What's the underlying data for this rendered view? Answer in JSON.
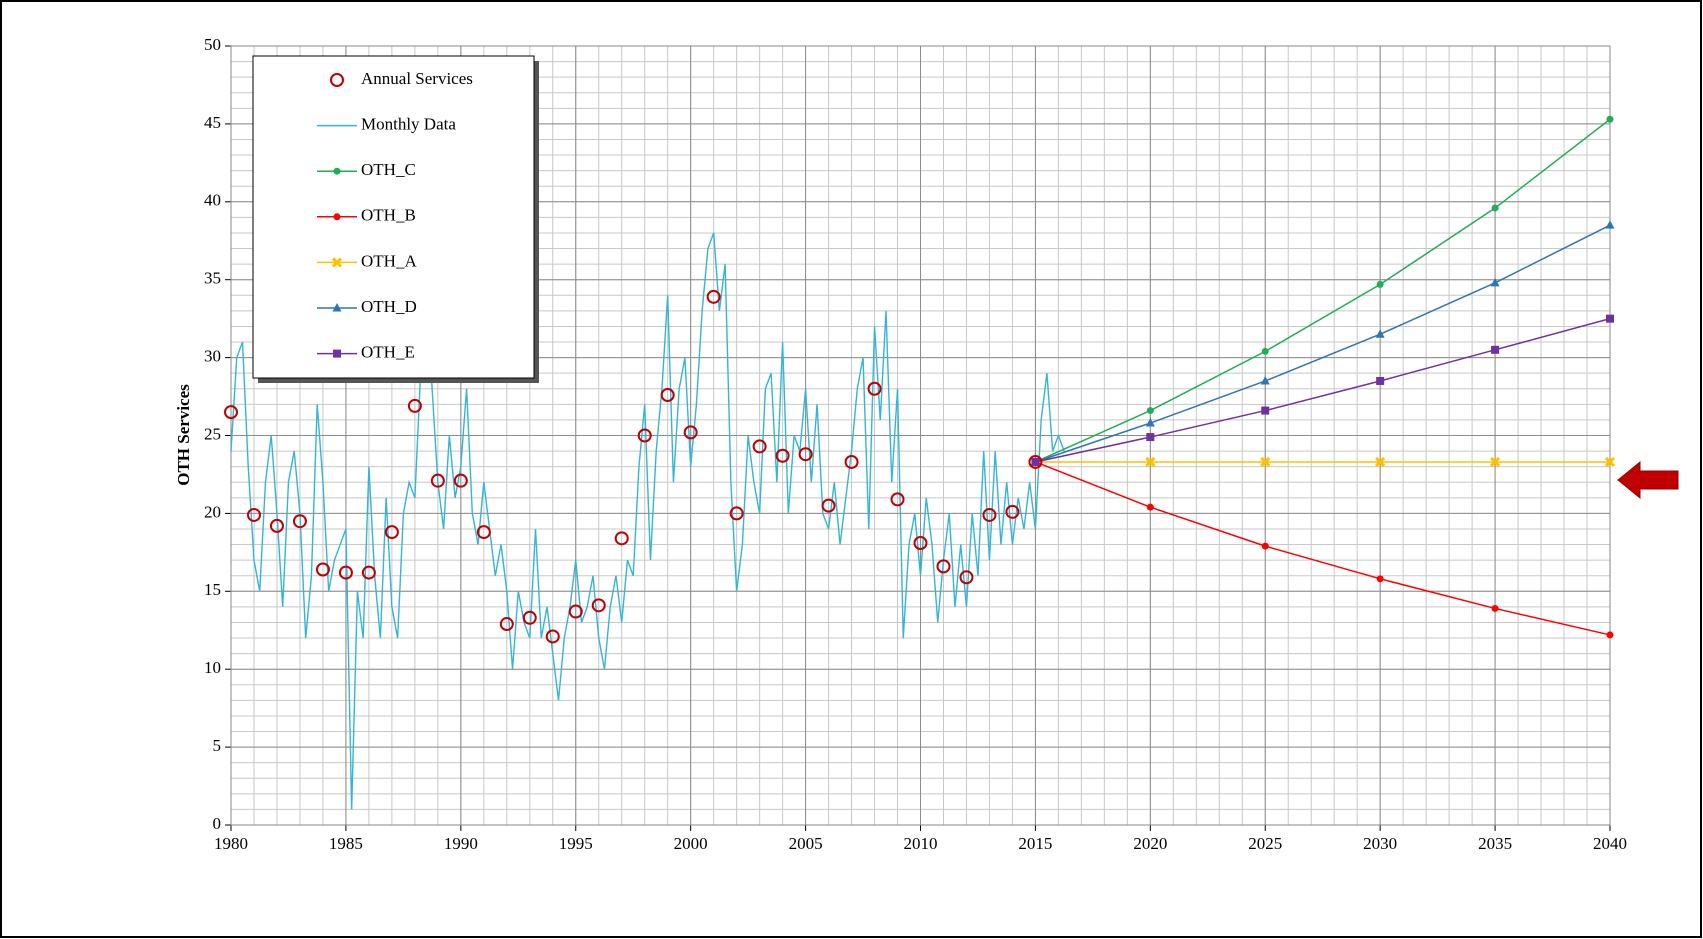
{
  "chart_data": {
    "type": "line",
    "y_axis_label": "OTH Services",
    "xlim": [
      1980,
      2040
    ],
    "xticks": [
      1980,
      1985,
      1990,
      1995,
      2000,
      2005,
      2010,
      2015,
      2020,
      2025,
      2030,
      2035,
      2040
    ],
    "ylim": [
      0,
      50
    ],
    "yticks": [
      0,
      5,
      10,
      15,
      20,
      25,
      30,
      35,
      40,
      45,
      50
    ],
    "grid": true,
    "minor_grid": true,
    "legend": "upper left",
    "series": [
      {
        "name": "Annual Services",
        "color": "#c00000",
        "marker": "open-circle",
        "line": false,
        "x": [
          1980,
          1981,
          1982,
          1983,
          1984,
          1985,
          1986,
          1987,
          1988,
          1989,
          1990,
          1991,
          1992,
          1993,
          1994,
          1995,
          1996,
          1997,
          1998,
          1999,
          2000,
          2001,
          2002,
          2003,
          2004,
          2005,
          2006,
          2007,
          2008,
          2009,
          2010,
          2011,
          2012,
          2013,
          2014,
          2015
        ],
        "values": [
          26.5,
          19.9,
          19.2,
          19.5,
          16.4,
          16.2,
          16.2,
          18.8,
          26.9,
          22.1,
          22.1,
          18.8,
          12.9,
          13.3,
          12.1,
          13.7,
          14.1,
          18.4,
          25.0,
          27.6,
          25.2,
          33.9,
          20.0,
          24.3,
          23.7,
          23.8,
          20.5,
          23.3,
          28.0,
          20.9,
          18.1,
          16.6,
          15.9,
          19.9,
          20.1,
          23.3
        ]
      },
      {
        "name": "Monthly Data",
        "color": "#33b5d8",
        "marker": "none",
        "line": true,
        "x": [
          1980,
          1980.25,
          1980.5,
          1980.75,
          1981,
          1981.25,
          1981.5,
          1981.75,
          1982,
          1982.25,
          1982.5,
          1982.75,
          1983,
          1983.25,
          1983.5,
          1983.75,
          1984,
          1984.25,
          1984.5,
          1984.75,
          1985,
          1985.25,
          1985.5,
          1985.75,
          1986,
          1986.25,
          1986.5,
          1986.75,
          1987,
          1987.25,
          1987.5,
          1987.75,
          1988,
          1988.25,
          1988.5,
          1988.75,
          1989,
          1989.25,
          1989.5,
          1989.75,
          1990,
          1990.25,
          1990.5,
          1990.75,
          1991,
          1991.25,
          1991.5,
          1991.75,
          1992,
          1992.25,
          1992.5,
          1992.75,
          1993,
          1993.25,
          1993.5,
          1993.75,
          1994,
          1994.25,
          1994.5,
          1994.75,
          1995,
          1995.25,
          1995.5,
          1995.75,
          1996,
          1996.25,
          1996.5,
          1996.75,
          1997,
          1997.25,
          1997.5,
          1997.75,
          1998,
          1998.25,
          1998.5,
          1998.75,
          1999,
          1999.25,
          1999.5,
          1999.75,
          2000,
          2000.25,
          2000.5,
          2000.75,
          2001,
          2001.25,
          2001.5,
          2001.75,
          2002,
          2002.25,
          2002.5,
          2002.75,
          2003,
          2003.25,
          2003.5,
          2003.75,
          2004,
          2004.25,
          2004.5,
          2004.75,
          2005,
          2005.25,
          2005.5,
          2005.75,
          2006,
          2006.25,
          2006.5,
          2006.75,
          2007,
          2007.25,
          2007.5,
          2007.75,
          2008,
          2008.25,
          2008.5,
          2008.75,
          2009,
          2009.25,
          2009.5,
          2009.75,
          2010,
          2010.25,
          2010.5,
          2010.75,
          2011,
          2011.25,
          2011.5,
          2011.75,
          2012,
          2012.25,
          2012.5,
          2012.75,
          2013,
          2013.25,
          2013.5,
          2013.75,
          2014,
          2014.25,
          2014.5,
          2014.75,
          2015,
          2015.25,
          2015.5,
          2015.75,
          2016,
          2016.25
        ],
        "values": [
          24,
          30,
          31,
          23,
          17,
          15,
          22,
          25,
          20,
          14,
          22,
          24,
          20,
          12,
          16,
          27,
          22,
          15,
          17,
          18,
          19,
          1,
          15,
          12,
          23,
          16,
          12,
          21,
          14,
          12,
          20,
          22,
          21,
          29,
          35,
          28,
          22,
          19,
          25,
          21,
          23,
          28,
          20,
          18,
          22,
          19,
          16,
          18,
          15,
          10,
          15,
          13,
          12,
          19,
          12,
          14,
          11,
          8,
          12,
          14,
          17,
          13,
          14,
          16,
          12,
          10,
          14,
          16,
          13,
          17,
          16,
          23,
          27,
          17,
          24,
          28,
          34,
          22,
          28,
          30,
          23,
          27,
          33,
          37,
          38,
          33,
          36,
          22,
          15,
          18,
          25,
          22,
          20,
          28,
          29,
          22,
          31,
          20,
          25,
          24,
          28,
          22,
          27,
          20,
          19,
          22,
          18,
          21,
          24,
          28,
          30,
          19,
          32,
          26,
          33,
          22,
          28,
          12,
          18,
          20,
          16,
          21,
          18,
          13,
          17,
          20,
          14,
          18,
          14,
          20,
          16,
          24,
          17,
          24,
          18,
          22,
          18,
          21,
          19,
          22,
          19,
          26,
          29,
          24,
          25,
          24
        ]
      },
      {
        "name": "OTH_C",
        "color": "#1fae55",
        "marker": "dot",
        "line": true,
        "x": [
          2015,
          2020,
          2025,
          2030,
          2035,
          2040
        ],
        "values": [
          23.3,
          26.6,
          30.4,
          34.7,
          39.6,
          45.3
        ]
      },
      {
        "name": "OTH_B",
        "color": "#ff0000",
        "marker": "dot",
        "line": true,
        "x": [
          2015,
          2020,
          2025,
          2030,
          2035,
          2040
        ],
        "values": [
          23.3,
          20.4,
          17.9,
          15.8,
          13.9,
          12.2
        ]
      },
      {
        "name": "OTH_A",
        "color": "#ffc000",
        "marker": "cross",
        "line": true,
        "x": [
          2015,
          2020,
          2025,
          2030,
          2035,
          2040
        ],
        "values": [
          23.3,
          23.3,
          23.3,
          23.3,
          23.3,
          23.3
        ]
      },
      {
        "name": "OTH_D",
        "color": "#2e75b6",
        "marker": "triangle",
        "line": true,
        "x": [
          2015,
          2020,
          2025,
          2030,
          2035,
          2040
        ],
        "values": [
          23.3,
          25.8,
          28.5,
          31.5,
          34.8,
          38.5
        ]
      },
      {
        "name": "OTH_E",
        "color": "#7030a0",
        "marker": "square",
        "line": true,
        "x": [
          2015,
          2020,
          2025,
          2030,
          2035,
          2040
        ],
        "values": [
          23.3,
          24.9,
          26.6,
          28.5,
          30.5,
          32.5
        ]
      }
    ]
  }
}
